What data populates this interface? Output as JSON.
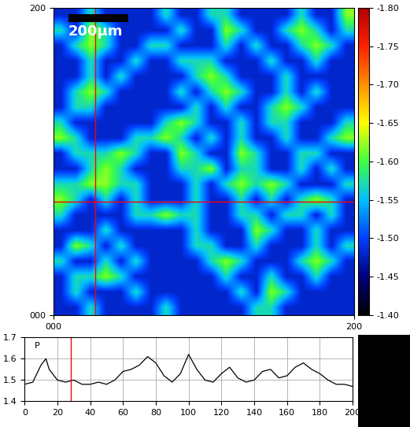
{
  "chart_data": [
    {
      "type": "heatmap",
      "xlim": [
        0,
        200
      ],
      "ylim": [
        0,
        200
      ],
      "xticks": [
        {
          "value": 0,
          "label": "000"
        },
        {
          "value": 200,
          "label": "200"
        }
      ],
      "yticks": [
        {
          "value": 0,
          "label": "000"
        },
        {
          "value": 200,
          "label": "200"
        }
      ],
      "annotations": [
        "200μm"
      ],
      "crosshair": {
        "x": 28,
        "y": 74,
        "color": "#ff0000"
      },
      "colorbar_range": [
        -1.4,
        -1.8
      ],
      "colorbar_ticks": [
        {
          "value": -1.8,
          "label": "-1.80"
        },
        {
          "value": -1.75,
          "label": "-1.75"
        },
        {
          "value": -1.7,
          "label": "-1.70"
        },
        {
          "value": -1.65,
          "label": "-1.65"
        },
        {
          "value": -1.6,
          "label": "-1.60"
        },
        {
          "value": -1.55,
          "label": "-1.55"
        },
        {
          "value": -1.5,
          "label": "-1.50"
        },
        {
          "value": -1.45,
          "label": "-1.45"
        },
        {
          "value": -1.4,
          "label": "-1.40"
        }
      ],
      "cells": [
        [
          -1.48,
          -1.48,
          -1.57,
          -1.48,
          -1.48,
          -1.48,
          -1.48,
          -1.57,
          -1.48,
          -1.48,
          -1.57,
          -1.57,
          -1.48,
          -1.48,
          -1.48,
          -1.48,
          -1.57,
          -1.48,
          -1.48,
          -1.62
        ],
        [
          -1.57,
          -1.48,
          -1.62,
          -1.57,
          -1.48,
          -1.48,
          -1.48,
          -1.48,
          -1.57,
          -1.48,
          -1.48,
          -1.62,
          -1.57,
          -1.48,
          -1.48,
          -1.57,
          -1.62,
          -1.57,
          -1.48,
          -1.57
        ],
        [
          -1.48,
          -1.57,
          -1.62,
          -1.57,
          -1.48,
          -1.48,
          -1.57,
          -1.57,
          -1.48,
          -1.48,
          -1.48,
          -1.57,
          -1.48,
          -1.57,
          -1.48,
          -1.48,
          -1.57,
          -1.62,
          -1.57,
          -1.48
        ],
        [
          -1.48,
          -1.48,
          -1.57,
          -1.48,
          -1.48,
          -1.57,
          -1.48,
          -1.48,
          -1.57,
          -1.57,
          -1.57,
          -1.48,
          -1.48,
          -1.48,
          -1.57,
          -1.48,
          -1.48,
          -1.57,
          -1.48,
          -1.48
        ],
        [
          -1.48,
          -1.48,
          -1.57,
          -1.48,
          -1.57,
          -1.48,
          -1.48,
          -1.48,
          -1.48,
          -1.57,
          -1.62,
          -1.57,
          -1.48,
          -1.48,
          -1.48,
          -1.57,
          -1.48,
          -1.48,
          -1.48,
          -1.48
        ],
        [
          -1.48,
          -1.57,
          -1.62,
          -1.57,
          -1.48,
          -1.48,
          -1.48,
          -1.48,
          -1.57,
          -1.48,
          -1.57,
          -1.62,
          -1.57,
          -1.48,
          -1.48,
          -1.57,
          -1.48,
          -1.57,
          -1.48,
          -1.48
        ],
        [
          -1.48,
          -1.57,
          -1.57,
          -1.48,
          -1.48,
          -1.48,
          -1.48,
          -1.48,
          -1.48,
          -1.57,
          -1.48,
          -1.57,
          -1.48,
          -1.48,
          -1.57,
          -1.62,
          -1.57,
          -1.48,
          -1.48,
          -1.48
        ],
        [
          -1.57,
          -1.48,
          -1.48,
          -1.48,
          -1.48,
          -1.48,
          -1.48,
          -1.57,
          -1.62,
          -1.57,
          -1.48,
          -1.48,
          -1.57,
          -1.48,
          -1.57,
          -1.57,
          -1.48,
          -1.48,
          -1.48,
          -1.57
        ],
        [
          -1.62,
          -1.57,
          -1.48,
          -1.48,
          -1.48,
          -1.57,
          -1.57,
          -1.62,
          -1.57,
          -1.48,
          -1.57,
          -1.48,
          -1.57,
          -1.48,
          -1.48,
          -1.57,
          -1.48,
          -1.48,
          -1.57,
          -1.62
        ],
        [
          -1.48,
          -1.57,
          -1.57,
          -1.57,
          -1.62,
          -1.57,
          -1.48,
          -1.48,
          -1.62,
          -1.57,
          -1.48,
          -1.48,
          -1.62,
          -1.57,
          -1.48,
          -1.48,
          -1.57,
          -1.57,
          -1.48,
          -1.48
        ],
        [
          -1.48,
          -1.48,
          -1.57,
          -1.62,
          -1.57,
          -1.48,
          -1.48,
          -1.48,
          -1.57,
          -1.57,
          -1.62,
          -1.48,
          -1.57,
          -1.57,
          -1.48,
          -1.48,
          -1.57,
          -1.48,
          -1.57,
          -1.48
        ],
        [
          -1.57,
          -1.57,
          -1.62,
          -1.62,
          -1.57,
          -1.57,
          -1.48,
          -1.48,
          -1.48,
          -1.57,
          -1.48,
          -1.57,
          -1.62,
          -1.57,
          -1.62,
          -1.57,
          -1.48,
          -1.48,
          -1.48,
          -1.57
        ],
        [
          -1.62,
          -1.57,
          -1.48,
          -1.57,
          -1.48,
          -1.57,
          -1.48,
          -1.48,
          -1.48,
          -1.57,
          -1.48,
          -1.48,
          -1.57,
          -1.48,
          -1.57,
          -1.48,
          -1.57,
          -1.62,
          -1.57,
          -1.48
        ],
        [
          -1.57,
          -1.48,
          -1.48,
          -1.48,
          -1.48,
          -1.57,
          -1.57,
          -1.62,
          -1.57,
          -1.57,
          -1.48,
          -1.48,
          -1.57,
          -1.57,
          -1.48,
          -1.57,
          -1.57,
          -1.48,
          -1.57,
          -1.48
        ],
        [
          -1.48,
          -1.48,
          -1.48,
          -1.57,
          -1.48,
          -1.48,
          -1.48,
          -1.48,
          -1.48,
          -1.57,
          -1.48,
          -1.48,
          -1.48,
          -1.62,
          -1.57,
          -1.48,
          -1.48,
          -1.57,
          -1.48,
          -1.48
        ],
        [
          -1.48,
          -1.62,
          -1.57,
          -1.48,
          -1.57,
          -1.48,
          -1.48,
          -1.48,
          -1.48,
          -1.57,
          -1.57,
          -1.48,
          -1.48,
          -1.57,
          -1.48,
          -1.48,
          -1.48,
          -1.57,
          -1.48,
          -1.57
        ],
        [
          -1.57,
          -1.48,
          -1.48,
          -1.57,
          -1.48,
          -1.57,
          -1.48,
          -1.48,
          -1.48,
          -1.48,
          -1.57,
          -1.62,
          -1.57,
          -1.48,
          -1.48,
          -1.48,
          -1.57,
          -1.62,
          -1.57,
          -1.48
        ],
        [
          -1.48,
          -1.57,
          -1.57,
          -1.62,
          -1.57,
          -1.48,
          -1.48,
          -1.48,
          -1.48,
          -1.48,
          -1.48,
          -1.57,
          -1.48,
          -1.48,
          -1.57,
          -1.48,
          -1.48,
          -1.57,
          -1.48,
          -1.48
        ],
        [
          -1.48,
          -1.57,
          -1.48,
          -1.48,
          -1.48,
          -1.57,
          -1.48,
          -1.48,
          -1.48,
          -1.48,
          -1.48,
          -1.48,
          -1.57,
          -1.48,
          -1.62,
          -1.57,
          -1.48,
          -1.48,
          -1.48,
          -1.48
        ],
        [
          -1.48,
          -1.48,
          -1.57,
          -1.48,
          -1.48,
          -1.48,
          -1.48,
          -1.57,
          -1.48,
          -1.48,
          -1.48,
          -1.48,
          -1.48,
          -1.57,
          -1.57,
          -1.48,
          -1.48,
          -1.48,
          -1.48,
          -1.48
        ]
      ]
    },
    {
      "type": "line",
      "annotations": [
        "P"
      ],
      "color": "#000000",
      "marker_x": {
        "x": 28,
        "color": "#ff0000"
      },
      "x": [
        0,
        5,
        10,
        13,
        15,
        20,
        25,
        30,
        35,
        40,
        45,
        50,
        55,
        60,
        65,
        70,
        75,
        80,
        85,
        90,
        95,
        100,
        105,
        110,
        115,
        120,
        125,
        130,
        135,
        140,
        145,
        150,
        155,
        160,
        165,
        170,
        175,
        180,
        185,
        190,
        195,
        200
      ],
      "values": [
        1.48,
        1.49,
        1.57,
        1.6,
        1.55,
        1.5,
        1.49,
        1.5,
        1.48,
        1.48,
        1.49,
        1.48,
        1.5,
        1.54,
        1.55,
        1.57,
        1.61,
        1.58,
        1.52,
        1.49,
        1.53,
        1.62,
        1.55,
        1.5,
        1.49,
        1.53,
        1.56,
        1.51,
        1.49,
        1.5,
        1.54,
        1.55,
        1.51,
        1.52,
        1.56,
        1.58,
        1.55,
        1.53,
        1.5,
        1.48,
        1.48,
        1.47
      ],
      "xlim": [
        0,
        200
      ],
      "ylim": [
        1.4,
        1.7
      ],
      "xticks": [
        0,
        20,
        40,
        60,
        80,
        100,
        120,
        140,
        160,
        180,
        200
      ],
      "yticks": [
        1.4,
        1.5,
        1.6,
        1.7
      ],
      "grid": true
    }
  ]
}
